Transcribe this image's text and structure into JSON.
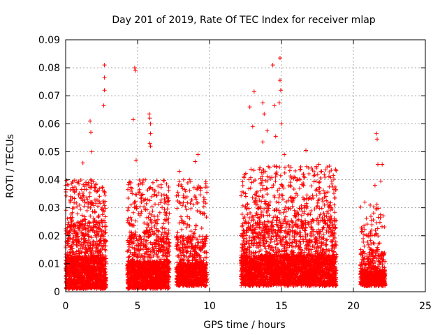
{
  "chart_data": {
    "type": "scatter",
    "title": "Day 201 of 2019, Rate Of TEC Index for receiver mlap",
    "xlabel": "GPS time / hours",
    "ylabel": "ROTI / TECUs",
    "xlim": [
      0,
      25
    ],
    "ylim": [
      0,
      0.09
    ],
    "grid": true,
    "marker": "+",
    "series_color": "#ff0000",
    "x_ticks": [
      {
        "value": 0,
        "label": "0"
      },
      {
        "value": 5,
        "label": "5"
      },
      {
        "value": 10,
        "label": "10"
      },
      {
        "value": 15,
        "label": "15"
      },
      {
        "value": 20,
        "label": "20"
      },
      {
        "value": 25,
        "label": "25"
      }
    ],
    "y_ticks": [
      {
        "value": 0,
        "label": "0"
      },
      {
        "value": 0.01,
        "label": "0.01"
      },
      {
        "value": 0.02,
        "label": "0.02"
      },
      {
        "value": 0.03,
        "label": "0.03"
      },
      {
        "value": 0.04,
        "label": "0.04"
      },
      {
        "value": 0.05,
        "label": "0.05"
      },
      {
        "value": 0.06,
        "label": "0.06"
      },
      {
        "value": 0.07,
        "label": "0.07"
      },
      {
        "value": 0.08,
        "label": "0.08"
      },
      {
        "value": 0.09,
        "label": "0.09"
      }
    ],
    "clusters": [
      {
        "x_start": 0.0,
        "x_end": 2.8,
        "density": 14,
        "low": 0.001,
        "typical": 0.025,
        "peak": 0.04
      },
      {
        "x_start": 4.3,
        "x_end": 7.2,
        "density": 13,
        "low": 0.001,
        "typical": 0.022,
        "peak": 0.04
      },
      {
        "x_start": 7.7,
        "x_end": 9.8,
        "density": 11,
        "low": 0.002,
        "typical": 0.02,
        "peak": 0.04
      },
      {
        "x_start": 12.2,
        "x_end": 18.8,
        "density": 12,
        "low": 0.002,
        "typical": 0.026,
        "peak": 0.045
      },
      {
        "x_start": 20.5,
        "x_end": 22.2,
        "density": 10,
        "low": 0.002,
        "typical": 0.015,
        "peak": 0.032
      }
    ],
    "highlights": [
      {
        "x": 0.0,
        "y": 0.038
      },
      {
        "x": 0.3,
        "y": 0.032
      },
      {
        "x": 1.2,
        "y": 0.046
      },
      {
        "x": 1.7,
        "y": 0.061
      },
      {
        "x": 1.75,
        "y": 0.057
      },
      {
        "x": 1.8,
        "y": 0.05
      },
      {
        "x": 2.7,
        "y": 0.081
      },
      {
        "x": 2.7,
        "y": 0.0765
      },
      {
        "x": 2.7,
        "y": 0.072
      },
      {
        "x": 2.65,
        "y": 0.0665
      },
      {
        "x": 4.7,
        "y": 0.0615
      },
      {
        "x": 4.8,
        "y": 0.08
      },
      {
        "x": 4.85,
        "y": 0.079
      },
      {
        "x": 5.8,
        "y": 0.0635
      },
      {
        "x": 5.85,
        "y": 0.062
      },
      {
        "x": 5.9,
        "y": 0.06
      },
      {
        "x": 5.9,
        "y": 0.0565
      },
      {
        "x": 5.85,
        "y": 0.053
      },
      {
        "x": 5.9,
        "y": 0.052
      },
      {
        "x": 4.9,
        "y": 0.047
      },
      {
        "x": 7.9,
        "y": 0.043
      },
      {
        "x": 8.6,
        "y": 0.04
      },
      {
        "x": 9.0,
        "y": 0.0465
      },
      {
        "x": 9.2,
        "y": 0.049
      },
      {
        "x": 13.0,
        "y": 0.059
      },
      {
        "x": 13.1,
        "y": 0.0715
      },
      {
        "x": 12.8,
        "y": 0.066
      },
      {
        "x": 13.7,
        "y": 0.0675
      },
      {
        "x": 13.8,
        "y": 0.0635
      },
      {
        "x": 14.0,
        "y": 0.0575
      },
      {
        "x": 14.4,
        "y": 0.081
      },
      {
        "x": 14.5,
        "y": 0.0665
      },
      {
        "x": 14.9,
        "y": 0.0835
      },
      {
        "x": 14.9,
        "y": 0.0755
      },
      {
        "x": 14.95,
        "y": 0.072
      },
      {
        "x": 14.85,
        "y": 0.0675
      },
      {
        "x": 15.0,
        "y": 0.06
      },
      {
        "x": 14.6,
        "y": 0.0555
      },
      {
        "x": 13.7,
        "y": 0.0535
      },
      {
        "x": 15.2,
        "y": 0.049
      },
      {
        "x": 16.7,
        "y": 0.0505
      },
      {
        "x": 17.6,
        "y": 0.0455
      },
      {
        "x": 18.8,
        "y": 0.0255
      },
      {
        "x": 21.6,
        "y": 0.0565
      },
      {
        "x": 21.65,
        "y": 0.0545
      },
      {
        "x": 21.7,
        "y": 0.0455
      },
      {
        "x": 22.0,
        "y": 0.0455
      },
      {
        "x": 21.9,
        "y": 0.0395
      },
      {
        "x": 21.5,
        "y": 0.038
      },
      {
        "x": 20.8,
        "y": 0.032
      }
    ]
  }
}
